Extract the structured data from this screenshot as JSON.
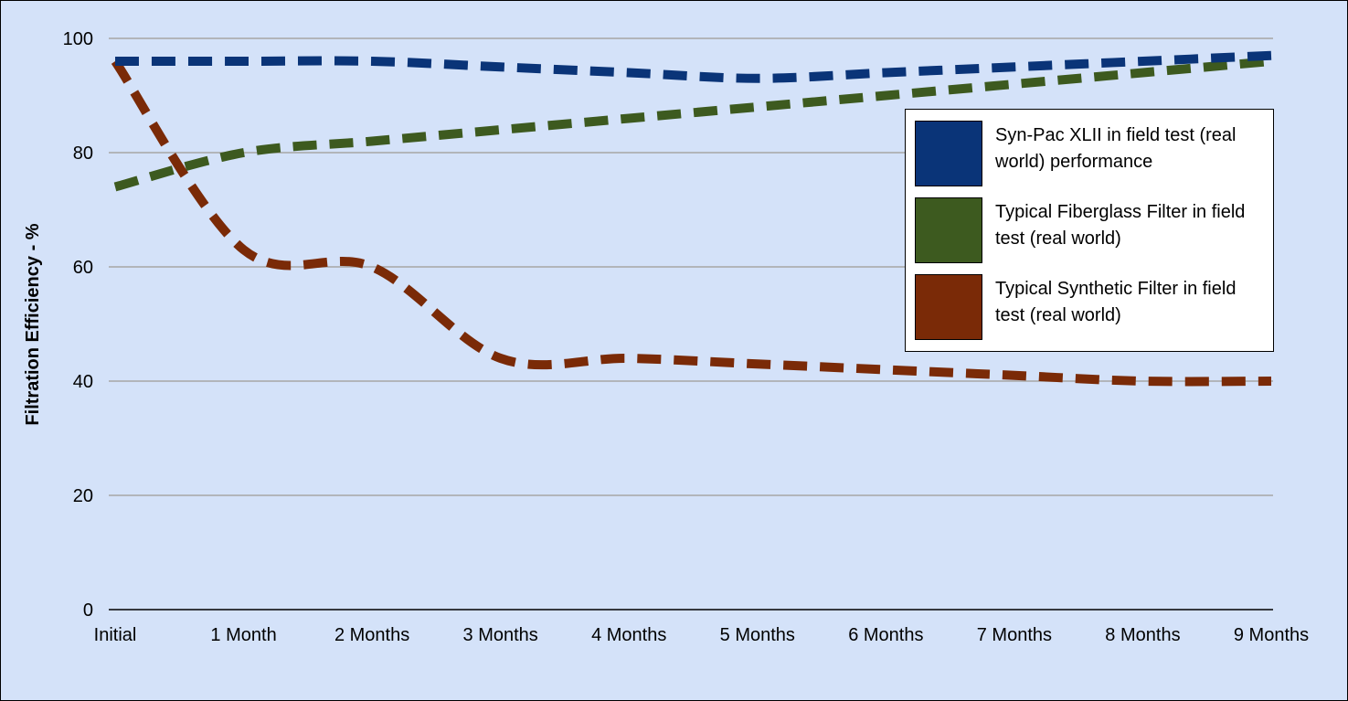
{
  "chart_data": {
    "type": "line",
    "title": "",
    "xlabel": "",
    "ylabel": "Filtration Efficiency - %",
    "ylim": [
      0,
      100
    ],
    "yticks": [
      0,
      20,
      40,
      60,
      80,
      100
    ],
    "grid": true,
    "legend_position": "right",
    "line_style": "dashed",
    "categories": [
      "Initial",
      "1 Month",
      "2 Months",
      "3 Months",
      "4 Months",
      "5 Months",
      "6 Months",
      "7 Months",
      "8 Months",
      "9 Months"
    ],
    "series": [
      {
        "name": "Syn-Pac XLII in field test (real world) performance",
        "color": "#0a3478",
        "values": [
          96,
          96,
          96,
          95,
          94,
          93,
          94,
          95,
          96,
          97
        ]
      },
      {
        "name": "Typical Fiberglass Filter in field test (real world)",
        "color": "#3d5a1f",
        "values": [
          74,
          80,
          82,
          84,
          86,
          88,
          90,
          92,
          94,
          96
        ]
      },
      {
        "name": "Typical Synthetic Filter in field test (real world)",
        "color": "#7a2a07",
        "values": [
          96,
          63,
          60,
          44,
          44,
          43,
          42,
          41,
          40,
          40
        ]
      }
    ]
  }
}
